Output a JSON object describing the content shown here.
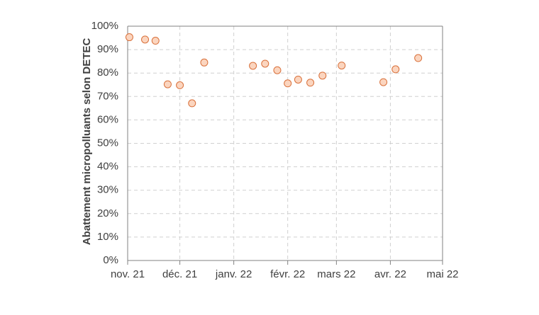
{
  "chart_data": {
    "type": "scatter",
    "title": "",
    "xlabel": "",
    "ylabel": "Abattement micropolluants selon DETEC",
    "x_axis": {
      "type": "date",
      "range": [
        "2021-11-01",
        "2022-05-01"
      ],
      "ticks": [
        {
          "date": "2021-11-01",
          "label": "nov. 21"
        },
        {
          "date": "2021-12-01",
          "label": "déc. 21"
        },
        {
          "date": "2022-01-01",
          "label": "janv. 22"
        },
        {
          "date": "2022-02-01",
          "label": "févr. 22"
        },
        {
          "date": "2022-03-01",
          "label": "mars 22"
        },
        {
          "date": "2022-04-01",
          "label": "avr. 22"
        },
        {
          "date": "2022-05-01",
          "label": "mai 22"
        }
      ]
    },
    "y_axis": {
      "range": [
        0,
        100
      ],
      "ticks": [
        0,
        10,
        20,
        30,
        40,
        50,
        60,
        70,
        80,
        90,
        100
      ],
      "tick_labels": [
        "0%",
        "10%",
        "20%",
        "30%",
        "40%",
        "50%",
        "60%",
        "70%",
        "80%",
        "90%",
        "100%"
      ]
    },
    "grid": "dashed",
    "legend": "none",
    "series": [
      {
        "color": "#fbd5bf",
        "edge_color": "#d9703a",
        "points": [
          {
            "x": "2021-11-02",
            "y": 95.3
          },
          {
            "x": "2021-11-11",
            "y": 94.3
          },
          {
            "x": "2021-11-17",
            "y": 93.8
          },
          {
            "x": "2021-11-24",
            "y": 75.2
          },
          {
            "x": "2021-12-01",
            "y": 74.8
          },
          {
            "x": "2021-12-08",
            "y": 67.1
          },
          {
            "x": "2021-12-15",
            "y": 84.5
          },
          {
            "x": "2022-01-12",
            "y": 83.1
          },
          {
            "x": "2022-01-19",
            "y": 84.0
          },
          {
            "x": "2022-01-26",
            "y": 81.2
          },
          {
            "x": "2022-02-01",
            "y": 75.6
          },
          {
            "x": "2022-02-07",
            "y": 77.2
          },
          {
            "x": "2022-02-14",
            "y": 75.9
          },
          {
            "x": "2022-02-21",
            "y": 78.9
          },
          {
            "x": "2022-03-04",
            "y": 83.2
          },
          {
            "x": "2022-03-28",
            "y": 76.1
          },
          {
            "x": "2022-04-04",
            "y": 81.6
          },
          {
            "x": "2022-04-17",
            "y": 86.4
          }
        ]
      }
    ]
  }
}
